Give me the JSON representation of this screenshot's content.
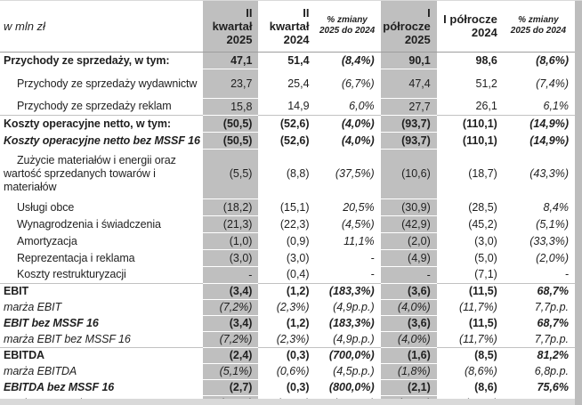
{
  "table": {
    "unit_label": "w mln zł",
    "columns": [
      {
        "key": "q2_2025",
        "label": "II\nkwartał\n2025",
        "highlight": true
      },
      {
        "key": "q2_2024",
        "label": "II\nkwartał\n2024",
        "highlight": false
      },
      {
        "key": "chg_q",
        "label": "% zmiany\n2025 do 2024",
        "highlight": false,
        "small": true
      },
      {
        "key": "h1_2025",
        "label": "I\npółrocze\n2025",
        "highlight": true
      },
      {
        "key": "h1_2024",
        "label": "I półrocze\n2024",
        "highlight": false
      },
      {
        "key": "chg_h",
        "label": "% zmiany\n2025 do 2024",
        "highlight": false,
        "small": true
      }
    ],
    "rows": [
      {
        "label": "Przychody ze sprzedaży, w tym:",
        "cls": "bold",
        "indent": 0,
        "v": [
          "47,1",
          "51,4",
          "(8,4%)",
          "90,1",
          "98,6",
          "(8,6%)"
        ]
      },
      {
        "label": "Przychody ze sprzedaży wydawnictw",
        "cls": "regular",
        "indent": 1,
        "h": 33,
        "wrap": true,
        "v": [
          "23,7",
          "25,4",
          "(6,7%)",
          "47,4",
          "51,2",
          "(7,4%)"
        ]
      },
      {
        "label": "Przychody ze sprzedaży reklam",
        "cls": "regular",
        "indent": 1,
        "v": [
          "15,8",
          "14,9",
          "6,0%",
          "27,7",
          "26,1",
          "6,1%"
        ]
      },
      {
        "label": "Koszty operacyjne netto, w tym:",
        "cls": "bold",
        "indent": 0,
        "sec": true,
        "v": [
          "(50,5)",
          "(52,6)",
          "(4,0%)",
          "(93,7)",
          "(110,1)",
          "(14,9%)"
        ]
      },
      {
        "label": "Koszty operacyjne netto bez MSSF 16",
        "cls": "bolditalic",
        "indent": 0,
        "v": [
          "(50,5)",
          "(52,6)",
          "(4,0%)",
          "(93,7)",
          "(110,1)",
          "(14,9%)"
        ]
      },
      {
        "label": "Zużycie materiałów i energii oraz wartość sprzedanych towarów i materiałów",
        "cls": "regular",
        "indent": 1,
        "h": 56,
        "wrap": true,
        "v": [
          "(5,5)",
          "(8,8)",
          "(37,5%)",
          "(10,6)",
          "(18,7)",
          "(43,3%)"
        ]
      },
      {
        "label": "Usługi obce",
        "cls": "regular",
        "indent": 1,
        "v": [
          "(18,2)",
          "(15,1)",
          "20,5%",
          "(30,9)",
          "(28,5)",
          "8,4%"
        ]
      },
      {
        "label": "Wynagrodzenia i świadczenia",
        "cls": "regular",
        "indent": 1,
        "v": [
          "(21,3)",
          "(22,3)",
          "(4,5%)",
          "(42,9)",
          "(45,2)",
          "(5,1%)"
        ]
      },
      {
        "label": "Amortyzacja",
        "cls": "regular",
        "indent": 1,
        "v": [
          "(1,0)",
          "(0,9)",
          "11,1%",
          "(2,0)",
          "(3,0)",
          "(33,3%)"
        ]
      },
      {
        "label": "Reprezentacja i reklama",
        "cls": "regular",
        "indent": 1,
        "v": [
          "(3,0)",
          "(3,0)",
          "-",
          "(4,9)",
          "(5,0)",
          "(2,0%)"
        ]
      },
      {
        "label": "Koszty restrukturyzacji",
        "cls": "regular",
        "indent": 1,
        "v": [
          "-",
          "(0,4)",
          "-",
          "-",
          "(7,1)",
          "-"
        ]
      },
      {
        "label": "EBIT",
        "cls": "bold",
        "indent": 0,
        "sec": true,
        "h": 18,
        "v": [
          "(3,4)",
          "(1,2)",
          "(183,3%)",
          "(3,6)",
          "(11,5)",
          "68,7%"
        ]
      },
      {
        "label": "marża EBIT",
        "cls": "italic",
        "indent": 0,
        "h": 18,
        "v": [
          "(7,2%)",
          "(2,3%)",
          "(4,9p.p.)",
          "(4,0%)",
          "(11,7%)",
          "7,7p.p."
        ]
      },
      {
        "label": "EBIT bez MSSF 16",
        "cls": "bolditalic",
        "indent": 0,
        "h": 18,
        "v": [
          "(3,4)",
          "(1,2)",
          "(183,3%)",
          "(3,6)",
          "(11,5)",
          "68,7%"
        ]
      },
      {
        "label": "marża EBIT bez MSSF 16",
        "cls": "italic",
        "indent": 0,
        "h": 18,
        "v": [
          "(7,2%)",
          "(2,3%)",
          "(4,9p.p.)",
          "(4,0%)",
          "(11,7%)",
          "7,7p.p."
        ]
      },
      {
        "label": "EBITDA",
        "cls": "bold",
        "indent": 0,
        "sec": true,
        "h": 16,
        "v": [
          "(2,4)",
          "(0,3)",
          "(700,0%)",
          "(1,6)",
          "(8,5)",
          "81,2%"
        ]
      },
      {
        "label": "marża EBITDA",
        "cls": "italic",
        "indent": 0,
        "h": 16,
        "v": [
          "(5,1%)",
          "(0,6%)",
          "(4,5p.p.)",
          "(1,8%)",
          "(8,6%)",
          "6,8p.p."
        ]
      },
      {
        "label": "EBITDA bez MSSF 16",
        "cls": "bolditalic",
        "indent": 0,
        "h": 16,
        "v": [
          "(2,7)",
          "(0,3)",
          "(800,0%)",
          "(2,1)",
          "(8,6)",
          "75,6%"
        ]
      },
      {
        "label": "marża EBITDA bez MSSF 16",
        "cls": "italic",
        "indent": 0,
        "h": 16,
        "v": [
          "(5,7%)",
          "(0,6%)",
          "(5,1p.p.)",
          "(2,3%)",
          "(8,7%)",
          "6,4p.p."
        ]
      }
    ]
  },
  "colors": {
    "highlight_column_bg": "#bfbfbf",
    "right_strip": "#bdbdbd",
    "bottom_strip": "#d9d9d9",
    "text": "#1f1f1f"
  }
}
